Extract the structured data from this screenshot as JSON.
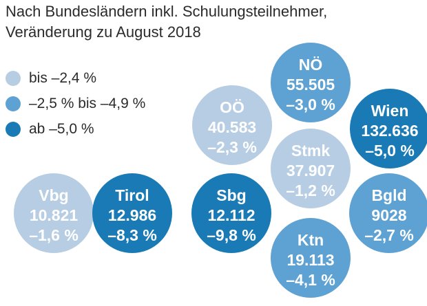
{
  "header": {
    "line1": "Nach Bundesländern inkl. Schulungsteilnehmer,",
    "line2": "Veränderung zu August 2018"
  },
  "legend": [
    {
      "label": "bis –2,4 %",
      "color": "#b7cde3"
    },
    {
      "label": "–2,5 % bis –4,9 %",
      "color": "#5ea1d3"
    },
    {
      "label": "ab –5,0 %",
      "color": "#1a7ab5"
    }
  ],
  "chart_data": {
    "type": "bubble-grid",
    "title": "Nach Bundesländern inkl. Schulungsteilnehmer, Veränderung zu August 2018",
    "items": [
      {
        "name": "NÖ",
        "value": "55.505",
        "change": "–3,0 %",
        "change_pct": -3.0,
        "color": "#5ea1d3"
      },
      {
        "name": "OÖ",
        "value": "40.583",
        "change": "–2,3 %",
        "change_pct": -2.3,
        "color": "#b7cde3"
      },
      {
        "name": "Wien",
        "value": "132.636",
        "change": "–5,0 %",
        "change_pct": -5.0,
        "color": "#1a7ab5"
      },
      {
        "name": "Stmk",
        "value": "37.907",
        "change": "–1,2 %",
        "change_pct": -1.2,
        "color": "#b7cde3"
      },
      {
        "name": "Vbg",
        "value": "10.821",
        "change": "–1,6 %",
        "change_pct": -1.6,
        "color": "#b7cde3"
      },
      {
        "name": "Tirol",
        "value": "12.986",
        "change": "–8,3 %",
        "change_pct": -8.3,
        "color": "#1a7ab5"
      },
      {
        "name": "Sbg",
        "value": "12.112",
        "change": "–9,8 %",
        "change_pct": -9.8,
        "color": "#1a7ab5"
      },
      {
        "name": "Bgld",
        "value": "9028",
        "change": "–2,7 %",
        "change_pct": -2.7,
        "color": "#5ea1d3"
      },
      {
        "name": "Ktn",
        "value": "19.113",
        "change": "–4,1 %",
        "change_pct": -4.1,
        "color": "#5ea1d3"
      }
    ]
  }
}
